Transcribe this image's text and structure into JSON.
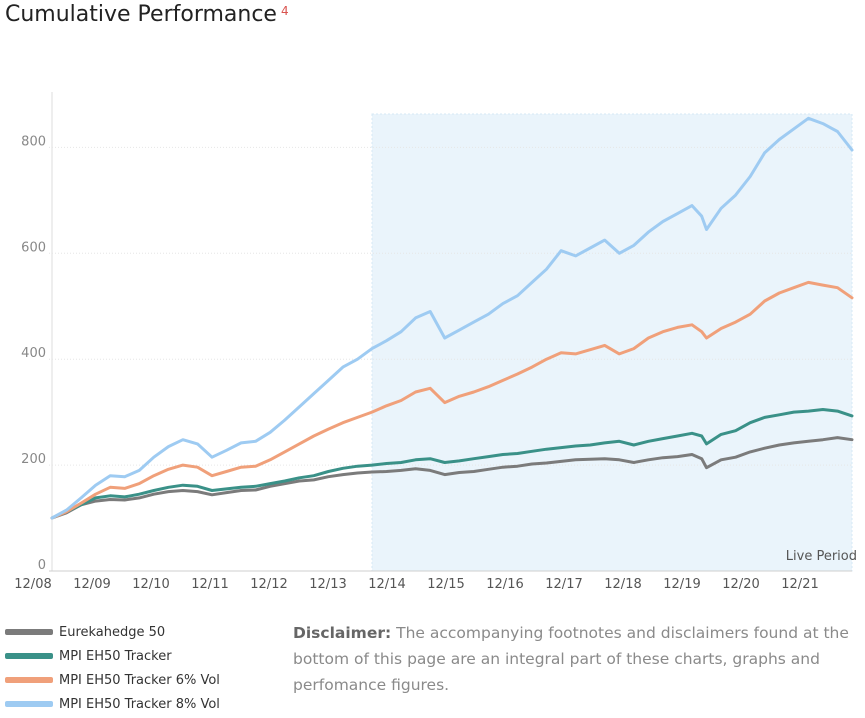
{
  "title": "Cumulative Performance",
  "title_footnote": "4",
  "disclaimer": {
    "label": "Disclaimer:",
    "text": "The accompanying footnotes and disclaimers found at the bottom of this page are an integral part of these charts, graphs and perfomance figures."
  },
  "chart_data": {
    "type": "line",
    "x_ticks": [
      "12/08",
      "12/09",
      "12/10",
      "12/11",
      "12/12",
      "12/13",
      "12/14",
      "12/15",
      "12/16",
      "12/17",
      "12/18",
      "12/19",
      "12/20",
      "12/21"
    ],
    "yticks": [
      0,
      200,
      400,
      600,
      800
    ],
    "ylim": [
      0,
      900
    ],
    "xlim": [
      "2008-12",
      "2022-09"
    ],
    "grid": "horizontal",
    "legend_position": "bottom-left",
    "shaded_region": {
      "label": "Live Period",
      "start": "2014-06",
      "end": "2022-09",
      "color": "#eaf4fb"
    },
    "series": [
      {
        "name": "Eurekahedge 50",
        "color": "#7b7b7b",
        "points": [
          [
            "2008-12",
            100
          ],
          [
            "2009-03",
            110
          ],
          [
            "2009-06",
            125
          ],
          [
            "2009-09",
            132
          ],
          [
            "2009-12",
            135
          ],
          [
            "2010-03",
            134
          ],
          [
            "2010-06",
            138
          ],
          [
            "2010-09",
            145
          ],
          [
            "2010-12",
            150
          ],
          [
            "2011-03",
            152
          ],
          [
            "2011-06",
            150
          ],
          [
            "2011-09",
            144
          ],
          [
            "2011-12",
            148
          ],
          [
            "2012-03",
            152
          ],
          [
            "2012-06",
            153
          ],
          [
            "2012-09",
            160
          ],
          [
            "2012-12",
            165
          ],
          [
            "2013-03",
            170
          ],
          [
            "2013-06",
            172
          ],
          [
            "2013-09",
            178
          ],
          [
            "2013-12",
            182
          ],
          [
            "2014-03",
            185
          ],
          [
            "2014-06",
            187
          ],
          [
            "2014-09",
            188
          ],
          [
            "2014-12",
            190
          ],
          [
            "2015-03",
            193
          ],
          [
            "2015-06",
            190
          ],
          [
            "2015-09",
            182
          ],
          [
            "2015-12",
            186
          ],
          [
            "2016-03",
            188
          ],
          [
            "2016-06",
            192
          ],
          [
            "2016-09",
            196
          ],
          [
            "2016-12",
            198
          ],
          [
            "2017-03",
            202
          ],
          [
            "2017-06",
            204
          ],
          [
            "2017-09",
            207
          ],
          [
            "2017-12",
            210
          ],
          [
            "2018-03",
            211
          ],
          [
            "2018-06",
            212
          ],
          [
            "2018-09",
            210
          ],
          [
            "2018-12",
            205
          ],
          [
            "2019-03",
            210
          ],
          [
            "2019-06",
            214
          ],
          [
            "2019-09",
            216
          ],
          [
            "2019-12",
            220
          ],
          [
            "2020-02",
            212
          ],
          [
            "2020-03",
            195
          ],
          [
            "2020-06",
            210
          ],
          [
            "2020-09",
            215
          ],
          [
            "2020-12",
            225
          ],
          [
            "2021-03",
            232
          ],
          [
            "2021-06",
            238
          ],
          [
            "2021-09",
            242
          ],
          [
            "2021-12",
            245
          ],
          [
            "2022-03",
            248
          ],
          [
            "2022-06",
            252
          ],
          [
            "2022-09",
            248
          ]
        ]
      },
      {
        "name": "MPI EH50 Tracker",
        "color": "#3a9188",
        "points": [
          [
            "2008-12",
            100
          ],
          [
            "2009-03",
            112
          ],
          [
            "2009-06",
            125
          ],
          [
            "2009-09",
            138
          ],
          [
            "2009-12",
            142
          ],
          [
            "2010-03",
            140
          ],
          [
            "2010-06",
            145
          ],
          [
            "2010-09",
            152
          ],
          [
            "2010-12",
            158
          ],
          [
            "2011-03",
            162
          ],
          [
            "2011-06",
            160
          ],
          [
            "2011-09",
            152
          ],
          [
            "2011-12",
            155
          ],
          [
            "2012-03",
            158
          ],
          [
            "2012-06",
            160
          ],
          [
            "2012-09",
            165
          ],
          [
            "2012-12",
            170
          ],
          [
            "2013-03",
            176
          ],
          [
            "2013-06",
            180
          ],
          [
            "2013-09",
            188
          ],
          [
            "2013-12",
            194
          ],
          [
            "2014-03",
            198
          ],
          [
            "2014-06",
            200
          ],
          [
            "2014-09",
            203
          ],
          [
            "2014-12",
            205
          ],
          [
            "2015-03",
            210
          ],
          [
            "2015-06",
            212
          ],
          [
            "2015-09",
            205
          ],
          [
            "2015-12",
            208
          ],
          [
            "2016-03",
            212
          ],
          [
            "2016-06",
            216
          ],
          [
            "2016-09",
            220
          ],
          [
            "2016-12",
            222
          ],
          [
            "2017-03",
            226
          ],
          [
            "2017-06",
            230
          ],
          [
            "2017-09",
            233
          ],
          [
            "2017-12",
            236
          ],
          [
            "2018-03",
            238
          ],
          [
            "2018-06",
            242
          ],
          [
            "2018-09",
            245
          ],
          [
            "2018-12",
            238
          ],
          [
            "2019-03",
            245
          ],
          [
            "2019-06",
            250
          ],
          [
            "2019-09",
            255
          ],
          [
            "2019-12",
            260
          ],
          [
            "2020-02",
            255
          ],
          [
            "2020-03",
            240
          ],
          [
            "2020-06",
            258
          ],
          [
            "2020-09",
            265
          ],
          [
            "2020-12",
            280
          ],
          [
            "2021-03",
            290
          ],
          [
            "2021-06",
            295
          ],
          [
            "2021-09",
            300
          ],
          [
            "2021-12",
            302
          ],
          [
            "2022-03",
            305
          ],
          [
            "2022-06",
            302
          ],
          [
            "2022-09",
            293
          ]
        ]
      },
      {
        "name": "MPI EH50 Tracker 6% Vol",
        "color": "#f0a07a",
        "points": [
          [
            "2008-12",
            100
          ],
          [
            "2009-03",
            112
          ],
          [
            "2009-06",
            128
          ],
          [
            "2009-09",
            145
          ],
          [
            "2009-12",
            158
          ],
          [
            "2010-03",
            156
          ],
          [
            "2010-06",
            165
          ],
          [
            "2010-09",
            180
          ],
          [
            "2010-12",
            192
          ],
          [
            "2011-03",
            200
          ],
          [
            "2011-06",
            196
          ],
          [
            "2011-09",
            180
          ],
          [
            "2011-12",
            188
          ],
          [
            "2012-03",
            196
          ],
          [
            "2012-06",
            198
          ],
          [
            "2012-09",
            210
          ],
          [
            "2012-12",
            225
          ],
          [
            "2013-03",
            240
          ],
          [
            "2013-06",
            255
          ],
          [
            "2013-09",
            268
          ],
          [
            "2013-12",
            280
          ],
          [
            "2014-03",
            290
          ],
          [
            "2014-06",
            300
          ],
          [
            "2014-09",
            312
          ],
          [
            "2014-12",
            322
          ],
          [
            "2015-03",
            338
          ],
          [
            "2015-06",
            345
          ],
          [
            "2015-09",
            318
          ],
          [
            "2015-12",
            330
          ],
          [
            "2016-03",
            338
          ],
          [
            "2016-06",
            348
          ],
          [
            "2016-09",
            360
          ],
          [
            "2016-12",
            372
          ],
          [
            "2017-03",
            385
          ],
          [
            "2017-06",
            400
          ],
          [
            "2017-09",
            412
          ],
          [
            "2017-12",
            410
          ],
          [
            "2018-03",
            418
          ],
          [
            "2018-06",
            426
          ],
          [
            "2018-09",
            410
          ],
          [
            "2018-12",
            420
          ],
          [
            "2019-03",
            440
          ],
          [
            "2019-06",
            452
          ],
          [
            "2019-09",
            460
          ],
          [
            "2019-12",
            465
          ],
          [
            "2020-02",
            452
          ],
          [
            "2020-03",
            440
          ],
          [
            "2020-06",
            458
          ],
          [
            "2020-09",
            470
          ],
          [
            "2020-12",
            485
          ],
          [
            "2021-03",
            510
          ],
          [
            "2021-06",
            525
          ],
          [
            "2021-09",
            535
          ],
          [
            "2021-12",
            545
          ],
          [
            "2022-03",
            540
          ],
          [
            "2022-06",
            535
          ],
          [
            "2022-09",
            516
          ]
        ]
      },
      {
        "name": "MPI EH50 Tracker 8% Vol",
        "color": "#9ecbf2",
        "points": [
          [
            "2008-12",
            100
          ],
          [
            "2009-03",
            115
          ],
          [
            "2009-06",
            138
          ],
          [
            "2009-09",
            162
          ],
          [
            "2009-12",
            180
          ],
          [
            "2010-03",
            178
          ],
          [
            "2010-06",
            190
          ],
          [
            "2010-09",
            215
          ],
          [
            "2010-12",
            235
          ],
          [
            "2011-03",
            248
          ],
          [
            "2011-06",
            240
          ],
          [
            "2011-09",
            215
          ],
          [
            "2011-12",
            228
          ],
          [
            "2012-03",
            242
          ],
          [
            "2012-06",
            245
          ],
          [
            "2012-09",
            262
          ],
          [
            "2012-12",
            285
          ],
          [
            "2013-03",
            310
          ],
          [
            "2013-06",
            335
          ],
          [
            "2013-09",
            360
          ],
          [
            "2013-12",
            385
          ],
          [
            "2014-03",
            400
          ],
          [
            "2014-06",
            420
          ],
          [
            "2014-09",
            435
          ],
          [
            "2014-12",
            452
          ],
          [
            "2015-03",
            478
          ],
          [
            "2015-06",
            490
          ],
          [
            "2015-09",
            440
          ],
          [
            "2015-12",
            455
          ],
          [
            "2016-03",
            470
          ],
          [
            "2016-06",
            485
          ],
          [
            "2016-09",
            505
          ],
          [
            "2016-12",
            520
          ],
          [
            "2017-03",
            545
          ],
          [
            "2017-06",
            570
          ],
          [
            "2017-09",
            605
          ],
          [
            "2017-12",
            595
          ],
          [
            "2018-03",
            610
          ],
          [
            "2018-06",
            625
          ],
          [
            "2018-09",
            600
          ],
          [
            "2018-12",
            615
          ],
          [
            "2019-03",
            640
          ],
          [
            "2019-06",
            660
          ],
          [
            "2019-09",
            675
          ],
          [
            "2019-12",
            690
          ],
          [
            "2020-02",
            670
          ],
          [
            "2020-03",
            645
          ],
          [
            "2020-06",
            685
          ],
          [
            "2020-09",
            710
          ],
          [
            "2020-12",
            745
          ],
          [
            "2021-03",
            790
          ],
          [
            "2021-06",
            815
          ],
          [
            "2021-09",
            835
          ],
          [
            "2021-12",
            855
          ],
          [
            "2022-03",
            845
          ],
          [
            "2022-06",
            830
          ],
          [
            "2022-09",
            795
          ]
        ]
      }
    ]
  }
}
